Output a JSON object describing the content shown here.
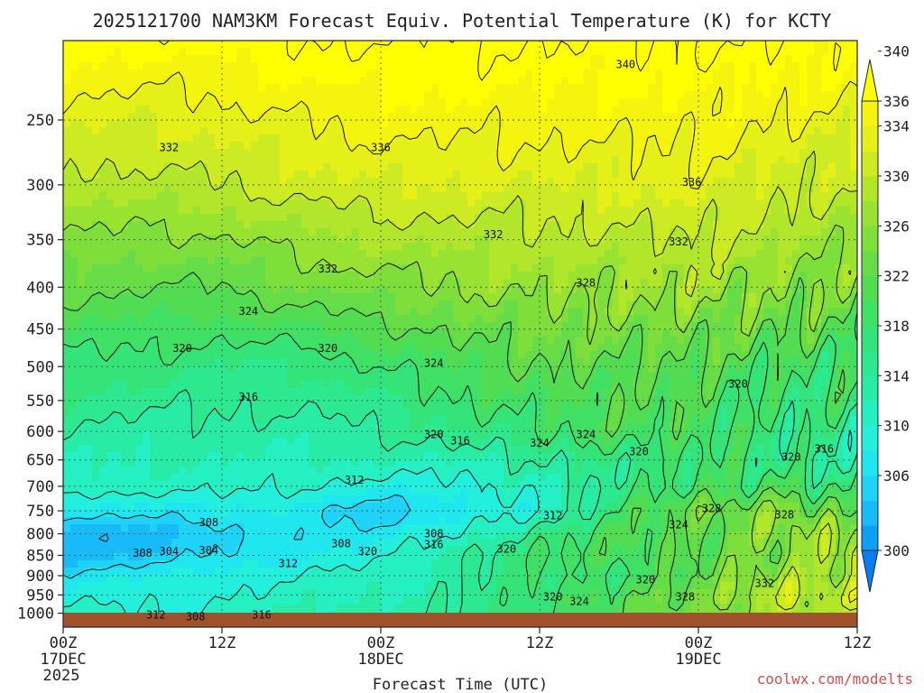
{
  "chart_data": {
    "type": "heatmap",
    "title": "2025121700 NAM3KM Forecast Equiv. Potential Temperature (K) for KCTY",
    "xlabel": "Forecast Time (UTC)",
    "ylabel": "",
    "credit": "coolwx.com/modelts",
    "y_scale": "log-pressure",
    "y_range_hpa": [
      1040,
      200
    ],
    "x_range_hours": [
      0,
      60
    ],
    "y_ticks": [
      250,
      300,
      350,
      400,
      450,
      500,
      550,
      600,
      650,
      700,
      750,
      800,
      850,
      900,
      950,
      1000
    ],
    "x_ticks": [
      {
        "hour": 0,
        "label": "00Z",
        "date": "17DEC",
        "year": "2025"
      },
      {
        "hour": 12,
        "label": "12Z",
        "date": "",
        "year": ""
      },
      {
        "hour": 24,
        "label": "00Z",
        "date": "18DEC",
        "year": ""
      },
      {
        "hour": 36,
        "label": "12Z",
        "date": "",
        "year": ""
      },
      {
        "hour": 48,
        "label": "00Z",
        "date": "19DEC",
        "year": ""
      },
      {
        "hour": 60,
        "label": "12Z",
        "date": "",
        "year": ""
      }
    ],
    "colorbar": {
      "levels": [
        300,
        302,
        304,
        306,
        308,
        310,
        312,
        314,
        316,
        318,
        320,
        322,
        324,
        326,
        328,
        330,
        332,
        334,
        336,
        338,
        340
      ],
      "labels": [
        300,
        306,
        310,
        314,
        318,
        322,
        326,
        330,
        334,
        336,
        340
      ],
      "colors": [
        "#0a7ef0",
        "#0f9ef5",
        "#18baf8",
        "#1ed2f8",
        "#20e6f0",
        "#22efdc",
        "#24f0c4",
        "#28eca6",
        "#2ce88e",
        "#34e478",
        "#40e064",
        "#52dc52",
        "#66dc46",
        "#7ede3a",
        "#98e232",
        "#b2e62a",
        "#cceb22",
        "#e4f018",
        "#f4f40e",
        "#ffff00"
      ],
      "units": "K"
    },
    "profile_hours": [
      0,
      6,
      12,
      18,
      24,
      30,
      36,
      42,
      48,
      54,
      60
    ],
    "profiles": [
      {
        "hour": 0,
        "p": [
          1000,
          950,
          900,
          850,
          800,
          750,
          700,
          650,
          600,
          500,
          400,
          300,
          250,
          200
        ],
        "theta_e": [
          313,
          311,
          309,
          305,
          304,
          309,
          313,
          314,
          316,
          319,
          325,
          331,
          335,
          339
        ]
      },
      {
        "hour": 6,
        "p": [
          1000,
          950,
          900,
          850,
          800,
          750,
          700,
          650,
          600,
          500,
          400,
          300,
          250,
          200
        ],
        "theta_e": [
          312,
          311,
          310,
          306,
          305,
          309,
          313,
          314,
          315,
          319,
          324,
          331,
          334,
          339
        ]
      },
      {
        "hour": 12,
        "p": [
          1000,
          950,
          900,
          850,
          800,
          750,
          700,
          650,
          600,
          500,
          400,
          300,
          250,
          200
        ],
        "theta_e": [
          313,
          312,
          311,
          308,
          307,
          310,
          313,
          314,
          315,
          318,
          324,
          332,
          335,
          339
        ]
      },
      {
        "hour": 18,
        "p": [
          1000,
          950,
          900,
          850,
          800,
          750,
          700,
          650,
          600,
          500,
          400,
          300,
          250,
          200
        ],
        "theta_e": [
          314,
          313,
          312,
          310,
          309,
          309,
          312,
          314,
          315,
          318,
          326,
          333,
          336,
          340
        ]
      },
      {
        "hour": 24,
        "p": [
          1000,
          950,
          900,
          850,
          800,
          750,
          700,
          650,
          600,
          500,
          400,
          300,
          250,
          200
        ],
        "theta_e": [
          315,
          314,
          313,
          311,
          309,
          306,
          311,
          314,
          316,
          320,
          327,
          334,
          337,
          340
        ]
      },
      {
        "hour": 30,
        "p": [
          1000,
          950,
          900,
          850,
          800,
          750,
          700,
          650,
          600,
          500,
          400,
          300,
          250,
          200
        ],
        "theta_e": [
          316,
          316,
          316,
          316,
          312,
          309,
          311,
          314,
          318,
          322,
          328,
          334,
          337,
          340
        ]
      },
      {
        "hour": 36,
        "p": [
          1000,
          950,
          900,
          850,
          800,
          750,
          700,
          650,
          600,
          500,
          400,
          300,
          250,
          200
        ],
        "theta_e": [
          320,
          320,
          319,
          320,
          318,
          312,
          313,
          316,
          320,
          324,
          329,
          334,
          337,
          340
        ]
      },
      {
        "hour": 42,
        "p": [
          1000,
          950,
          900,
          850,
          800,
          750,
          700,
          650,
          600,
          500,
          400,
          300,
          250,
          200
        ],
        "theta_e": [
          323,
          323,
          320,
          322,
          322,
          320,
          318,
          318,
          322,
          324,
          329,
          334,
          337,
          340
        ]
      },
      {
        "hour": 48,
        "p": [
          1000,
          950,
          900,
          850,
          800,
          750,
          700,
          650,
          600,
          500,
          400,
          300,
          250,
          200
        ],
        "theta_e": [
          326,
          326,
          324,
          324,
          324,
          326,
          320,
          320,
          322,
          323,
          330,
          335,
          337,
          340
        ]
      },
      {
        "hour": 54,
        "p": [
          1000,
          950,
          900,
          850,
          800,
          750,
          700,
          650,
          600,
          500,
          400,
          300,
          250,
          200
        ],
        "theta_e": [
          330,
          333,
          330,
          326,
          328,
          328,
          322,
          318,
          318,
          321,
          328,
          333,
          336,
          340
        ]
      },
      {
        "hour": 60,
        "p": [
          1000,
          950,
          900,
          850,
          800,
          750,
          700,
          650,
          600,
          500,
          400,
          300,
          250,
          200
        ],
        "theta_e": [
          329,
          332,
          330,
          334,
          330,
          322,
          318,
          316,
          317,
          321,
          326,
          332,
          335,
          339
        ]
      }
    ],
    "contour_labels": [
      {
        "text": "340",
        "hour": 42.5,
        "p": 214
      },
      {
        "text": "332",
        "hour": 8,
        "p": 270
      },
      {
        "text": "336",
        "hour": 24,
        "p": 270
      },
      {
        "text": "336",
        "hour": 47.5,
        "p": 298
      },
      {
        "text": "332",
        "hour": 32.5,
        "p": 345
      },
      {
        "text": "332",
        "hour": 46.5,
        "p": 352
      },
      {
        "text": "332",
        "hour": 20,
        "p": 380
      },
      {
        "text": "328",
        "hour": 39.5,
        "p": 395
      },
      {
        "text": "324",
        "hour": 14,
        "p": 428
      },
      {
        "text": "320",
        "hour": 9,
        "p": 475
      },
      {
        "text": "320",
        "hour": 20,
        "p": 475
      },
      {
        "text": "324",
        "hour": 28,
        "p": 495
      },
      {
        "text": "320",
        "hour": 51,
        "p": 525
      },
      {
        "text": "316",
        "hour": 14,
        "p": 545
      },
      {
        "text": "320",
        "hour": 28,
        "p": 605
      },
      {
        "text": "316",
        "hour": 30,
        "p": 616
      },
      {
        "text": "324",
        "hour": 39.5,
        "p": 605
      },
      {
        "text": "324",
        "hour": 36,
        "p": 620
      },
      {
        "text": "320",
        "hour": 43.5,
        "p": 635
      },
      {
        "text": "320",
        "hour": 55,
        "p": 645
      },
      {
        "text": "316",
        "hour": 57.5,
        "p": 630
      },
      {
        "text": "312",
        "hour": 22,
        "p": 688
      },
      {
        "text": "328",
        "hour": 49,
        "p": 745
      },
      {
        "text": "328",
        "hour": 54.5,
        "p": 758
      },
      {
        "text": "312",
        "hour": 37,
        "p": 760
      },
      {
        "text": "308",
        "hour": 11,
        "p": 775
      },
      {
        "text": "324",
        "hour": 46.5,
        "p": 780
      },
      {
        "text": "308",
        "hour": 28,
        "p": 800
      },
      {
        "text": "316",
        "hour": 28,
        "p": 825
      },
      {
        "text": "308",
        "hour": 21,
        "p": 822
      },
      {
        "text": "320",
        "hour": 23,
        "p": 840
      },
      {
        "text": "320",
        "hour": 33.5,
        "p": 835
      },
      {
        "text": "308",
        "hour": 6,
        "p": 845
      },
      {
        "text": "304",
        "hour": 8,
        "p": 840
      },
      {
        "text": "304",
        "hour": 11,
        "p": 838
      },
      {
        "text": "312",
        "hour": 17,
        "p": 870
      },
      {
        "text": "320",
        "hour": 44,
        "p": 910
      },
      {
        "text": "332",
        "hour": 53,
        "p": 920
      },
      {
        "text": "320",
        "hour": 37,
        "p": 955
      },
      {
        "text": "324",
        "hour": 39,
        "p": 968
      },
      {
        "text": "328",
        "hour": 47,
        "p": 955
      },
      {
        "text": "312",
        "hour": 7,
        "p": 1005
      },
      {
        "text": "308",
        "hour": 10,
        "p": 1010
      },
      {
        "text": "316",
        "hour": 15,
        "p": 1005
      }
    ]
  }
}
